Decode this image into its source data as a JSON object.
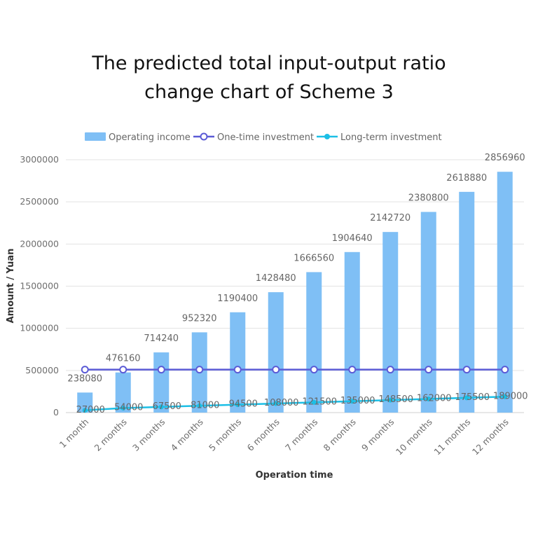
{
  "chart_data": {
    "type": "bar",
    "title": [
      "The predicted total input-output ratio",
      "change chart of Scheme 3"
    ],
    "xlabel": "Operation time",
    "ylabel": "Amount / Yuan",
    "ylim": [
      0,
      3000000
    ],
    "yticks": [
      "0",
      "500000",
      "1000000",
      "1500000",
      "2000000",
      "2500000",
      "3000000"
    ],
    "grid": true,
    "legend_position": "top",
    "categories": [
      "1 month",
      "2 months",
      "3 months",
      "4 months",
      "5 months",
      "6 months",
      "7 months",
      "8 months",
      "9 months",
      "10 months",
      "11 months",
      "12 months"
    ],
    "series": [
      {
        "name": "Operating income",
        "kind": "bar",
        "color": "#7fbff5",
        "values": [
          238080,
          476160,
          714240,
          952320,
          1190400,
          1428480,
          1666560,
          1904640,
          2142720,
          2380800,
          2618880,
          2856960
        ],
        "labels": [
          "238080",
          "476160",
          "714240",
          "952320",
          "1190400",
          "1428480",
          "1666560",
          "1904640",
          "2142720",
          "2380800",
          "2618880",
          "2856960"
        ]
      },
      {
        "name": "One-time investment",
        "kind": "line",
        "color": "#5b5bd6",
        "marker": "hollow-circle",
        "values": [
          510000,
          510000,
          510000,
          510000,
          510000,
          510000,
          510000,
          510000,
          510000,
          510000,
          510000,
          510000
        ]
      },
      {
        "name": "Long-term investment",
        "kind": "line",
        "color": "#1cbfe6",
        "marker": "filled-circle",
        "values": [
          27000,
          54000,
          67500,
          81000,
          94500,
          108000,
          121500,
          135000,
          148500,
          162000,
          175500,
          189000
        ],
        "labels": [
          "27000",
          "54000",
          "67500",
          "81000",
          "94500",
          "108000",
          "121500",
          "135000",
          "148500",
          "162000",
          "175500",
          "189000"
        ]
      }
    ]
  }
}
